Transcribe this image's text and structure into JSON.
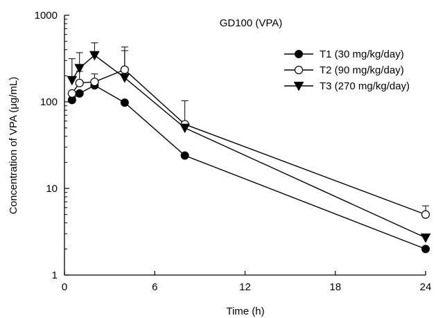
{
  "chart_data": {
    "type": "line",
    "title": "GD100 (VPA)",
    "xlabel": "Time (h)",
    "ylabel": "Concentration of VPA (μg/mL)",
    "xlim": [
      0,
      24
    ],
    "ylim": [
      1,
      1000
    ],
    "yscale": "log",
    "xticks": [
      0,
      6,
      12,
      18,
      24
    ],
    "xtick_labels": [
      "0",
      "6",
      "12",
      "18",
      "24"
    ],
    "yticks": [
      1,
      10,
      100,
      1000
    ],
    "ytick_labels": [
      "1",
      "10",
      "100",
      "1000"
    ],
    "grid": false,
    "legend_position": "top-right",
    "x": [
      0.5,
      1,
      2,
      4,
      8,
      24
    ],
    "series": [
      {
        "name": "T1 (30 mg/kg/day)",
        "marker": "filled-circle",
        "values": [
          105,
          125,
          155,
          98,
          24,
          2
        ],
        "error_upper": [
          null,
          null,
          null,
          null,
          null,
          null
        ]
      },
      {
        "name": "T2 (90 mg/kg/day)",
        "marker": "open-circle",
        "values": [
          125,
          165,
          170,
          235,
          55,
          5
        ],
        "error_upper": [
          null,
          225,
          210,
          430,
          103,
          6.3
        ]
      },
      {
        "name": "T3 (270 mg/kg/day)",
        "marker": "filled-triangle-down",
        "values": [
          178,
          245,
          345,
          190,
          50,
          2.7
        ],
        "error_upper": [
          315,
          370,
          480,
          390,
          null,
          null
        ]
      }
    ]
  }
}
